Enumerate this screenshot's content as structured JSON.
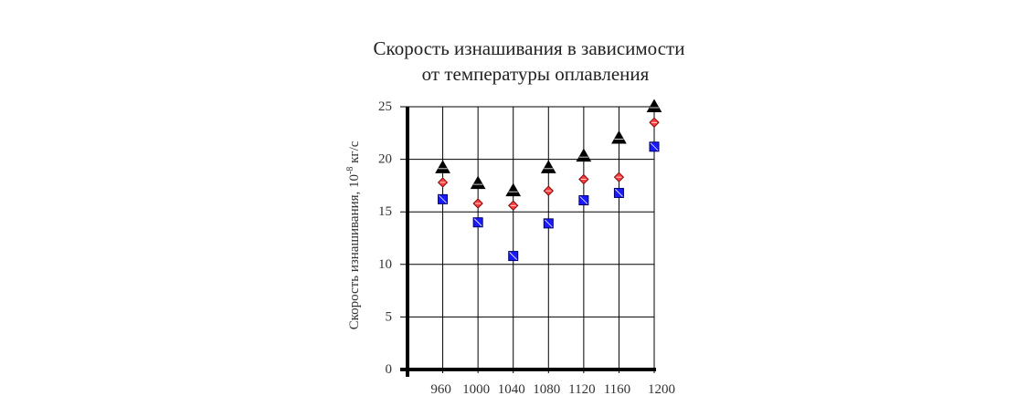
{
  "chart_data": {
    "type": "scatter",
    "title_lines": [
      "Скорость изнашивания в зависимости",
      "от температуры оплавления"
    ],
    "ylabel": "Скорость изнашивания, 10",
    "ylabel_sup": "-8",
    "ylabel_unit": " кг/с",
    "xlabel": "",
    "x_ticks": [
      "960",
      "1000",
      "1040",
      "1080",
      "1120",
      "1160",
      "1200"
    ],
    "y_ticks": [
      "0",
      "5",
      "10",
      "15",
      "20",
      "25"
    ],
    "x": [
      960,
      1000,
      1040,
      1080,
      1120,
      1160,
      1200
    ],
    "xlim": [
      920,
      1200
    ],
    "ylim": [
      0,
      25
    ],
    "grid": true,
    "series": [
      {
        "marker": "triangle",
        "color": "#000000",
        "values": [
          19.2,
          17.7,
          17.0,
          19.2,
          20.3,
          22.0,
          25.0
        ]
      },
      {
        "marker": "diamond",
        "color": "#ff3b3b",
        "values": [
          17.8,
          15.8,
          15.6,
          17.0,
          18.1,
          18.3,
          23.5
        ]
      },
      {
        "marker": "square",
        "color": "#1a1aff",
        "values": [
          16.2,
          14.0,
          10.8,
          13.9,
          16.1,
          16.8,
          21.2
        ]
      }
    ]
  }
}
